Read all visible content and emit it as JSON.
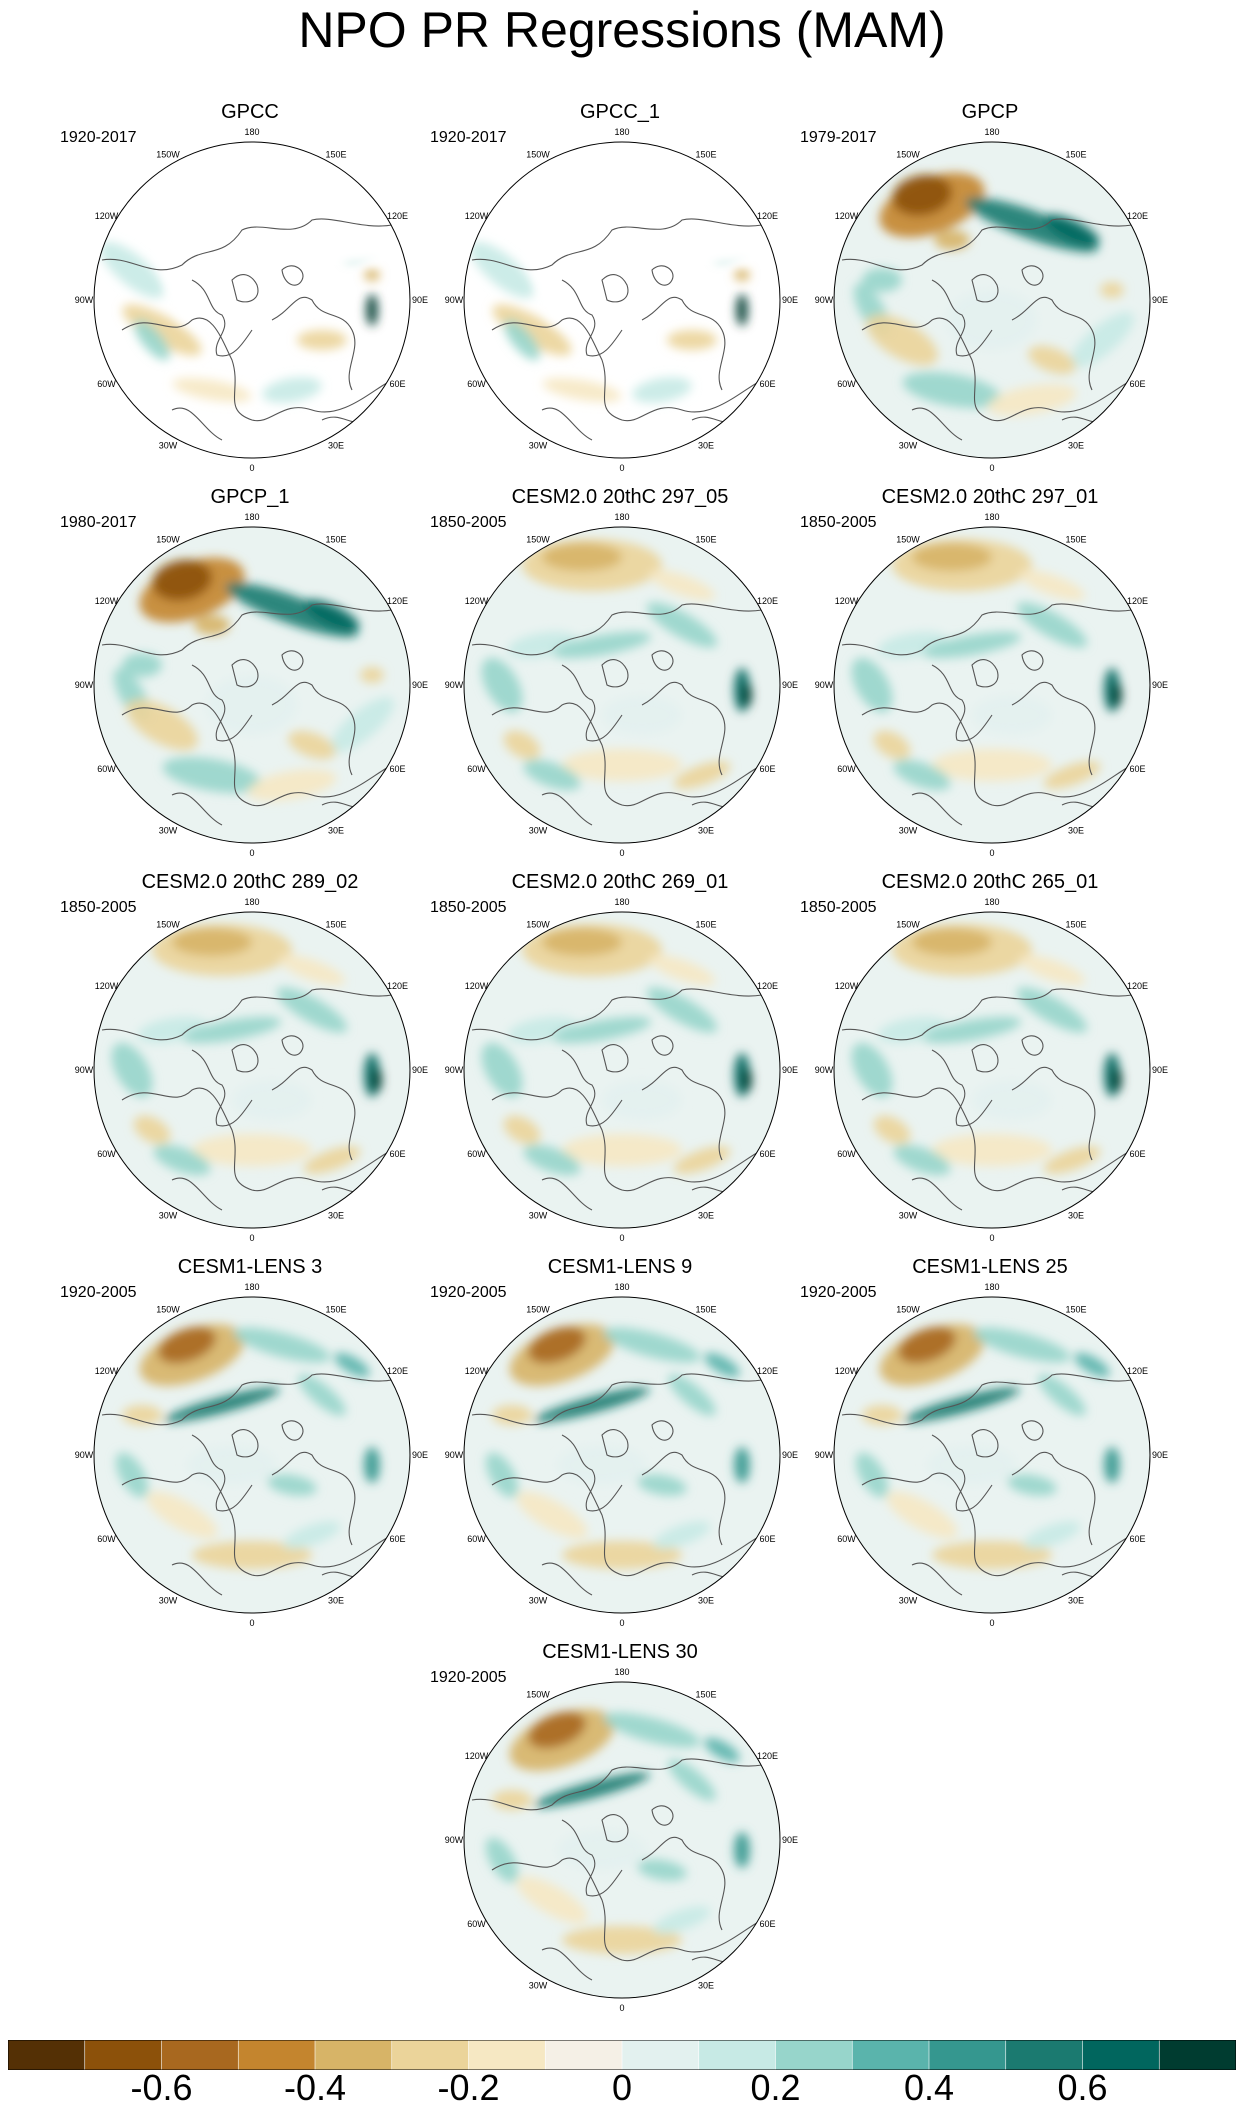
{
  "figure": {
    "title": "NPO PR Regressions (MAM)",
    "lon_labels": [
      "180",
      "150E",
      "120E",
      "90E",
      "60E",
      "30E",
      "0",
      "30W",
      "60W",
      "90W",
      "120W",
      "150W"
    ]
  },
  "panels": [
    {
      "title": "GPCC",
      "period": "1920-2017",
      "pattern": "gpcc"
    },
    {
      "title": "GPCC_1",
      "period": "1920-2017",
      "pattern": "gpcc"
    },
    {
      "title": "GPCP",
      "period": "1979-2017",
      "pattern": "obs"
    },
    {
      "title": "GPCP_1",
      "period": "1980-2017",
      "pattern": "obs"
    },
    {
      "title": "CESM2.0 20thC 297_05",
      "period": "1850-2005",
      "pattern": "model"
    },
    {
      "title": "CESM2.0 20thC 297_01",
      "period": "1850-2005",
      "pattern": "model"
    },
    {
      "title": "CESM2.0 20thC 289_02",
      "period": "1850-2005",
      "pattern": "model"
    },
    {
      "title": "CESM2.0 20thC 269_01",
      "period": "1850-2005",
      "pattern": "model"
    },
    {
      "title": "CESM2.0 20thC 265_01",
      "period": "1850-2005",
      "pattern": "model"
    },
    {
      "title": "CESM1-LENS 3",
      "period": "1920-2005",
      "pattern": "lens"
    },
    {
      "title": "CESM1-LENS 9",
      "period": "1920-2005",
      "pattern": "lens"
    },
    {
      "title": "CESM1-LENS 25",
      "period": "1920-2005",
      "pattern": "lens"
    },
    {
      "title": "CESM1-LENS 30",
      "period": "1920-2005",
      "pattern": "lens"
    }
  ],
  "colorbar": {
    "colors": [
      "#543005",
      "#8c510a",
      "#a8681f",
      "#c4852e",
      "#d7b467",
      "#ebd49a",
      "#f6e8c3",
      "#f5f0e6",
      "#e3f1ef",
      "#c7eae5",
      "#97d5cb",
      "#5ab4ac",
      "#35978f",
      "#1b7a70",
      "#01665e",
      "#003c30"
    ],
    "tick_labels": [
      "-0.6",
      "-0.4",
      "-0.2",
      "0",
      "0.2",
      "0.4",
      "0.6"
    ],
    "tick_values": [
      -0.6,
      -0.4,
      -0.2,
      0,
      0.2,
      0.4,
      0.6
    ],
    "min": -0.8,
    "max": 0.8
  }
}
